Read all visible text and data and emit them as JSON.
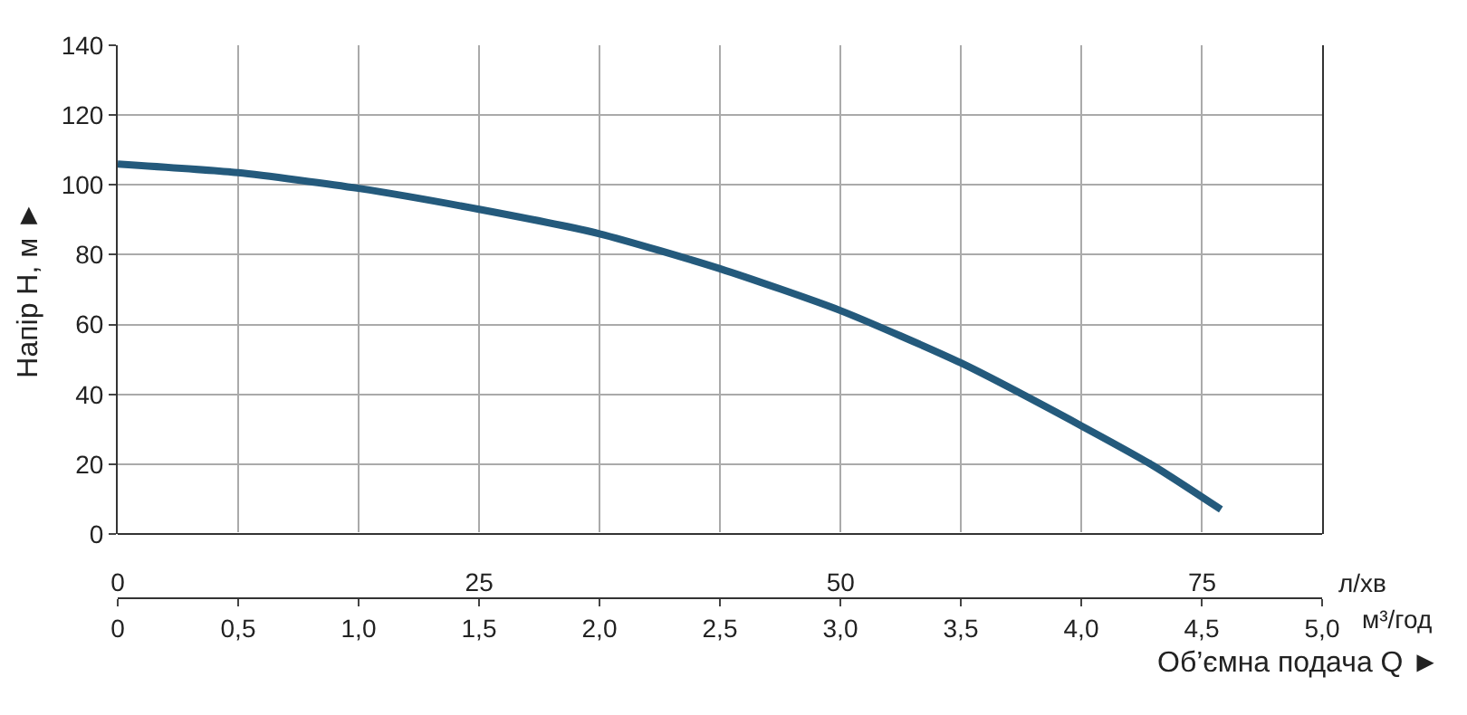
{
  "chart_data": {
    "type": "line",
    "ylabel": "Напір Н, м ►",
    "xlabel": "м³/год",
    "x2label": "л/хв",
    "annotations": [
      "Об’ємна подача Q ►"
    ],
    "x": [
      0,
      0.5,
      1.0,
      1.5,
      2.0,
      2.5,
      3.0,
      3.5,
      4.0,
      4.3,
      4.58
    ],
    "series": [
      {
        "color": "#245a7c",
        "values": [
          106,
          103.5,
          99,
          93,
          86,
          76,
          64,
          49,
          31,
          19.5,
          7
        ]
      }
    ],
    "xlim": [
      0,
      5.0
    ],
    "xticks": [
      0,
      {
        "value": 0.5,
        "label": "0,5"
      },
      {
        "value": 1.0,
        "label": "1,0"
      },
      {
        "value": 1.5,
        "label": "1,5"
      },
      {
        "value": 2.0,
        "label": "2,0"
      },
      {
        "value": 2.5,
        "label": "2,5"
      },
      {
        "value": 3.0,
        "label": "3,0"
      },
      {
        "value": 3.5,
        "label": "3,5"
      },
      {
        "value": 4.0,
        "label": "4,0"
      },
      {
        "value": 4.5,
        "label": "4,5"
      },
      {
        "value": 5.0,
        "label": "5,0"
      }
    ],
    "x2lim": [
      0,
      83.3
    ],
    "x2ticks": [
      0,
      25,
      50,
      75
    ],
    "ylim": [
      0,
      140
    ],
    "yticks": [
      0,
      20,
      40,
      60,
      80,
      100,
      120,
      140
    ],
    "grid": true,
    "marker": "none",
    "line_style": "solid"
  }
}
